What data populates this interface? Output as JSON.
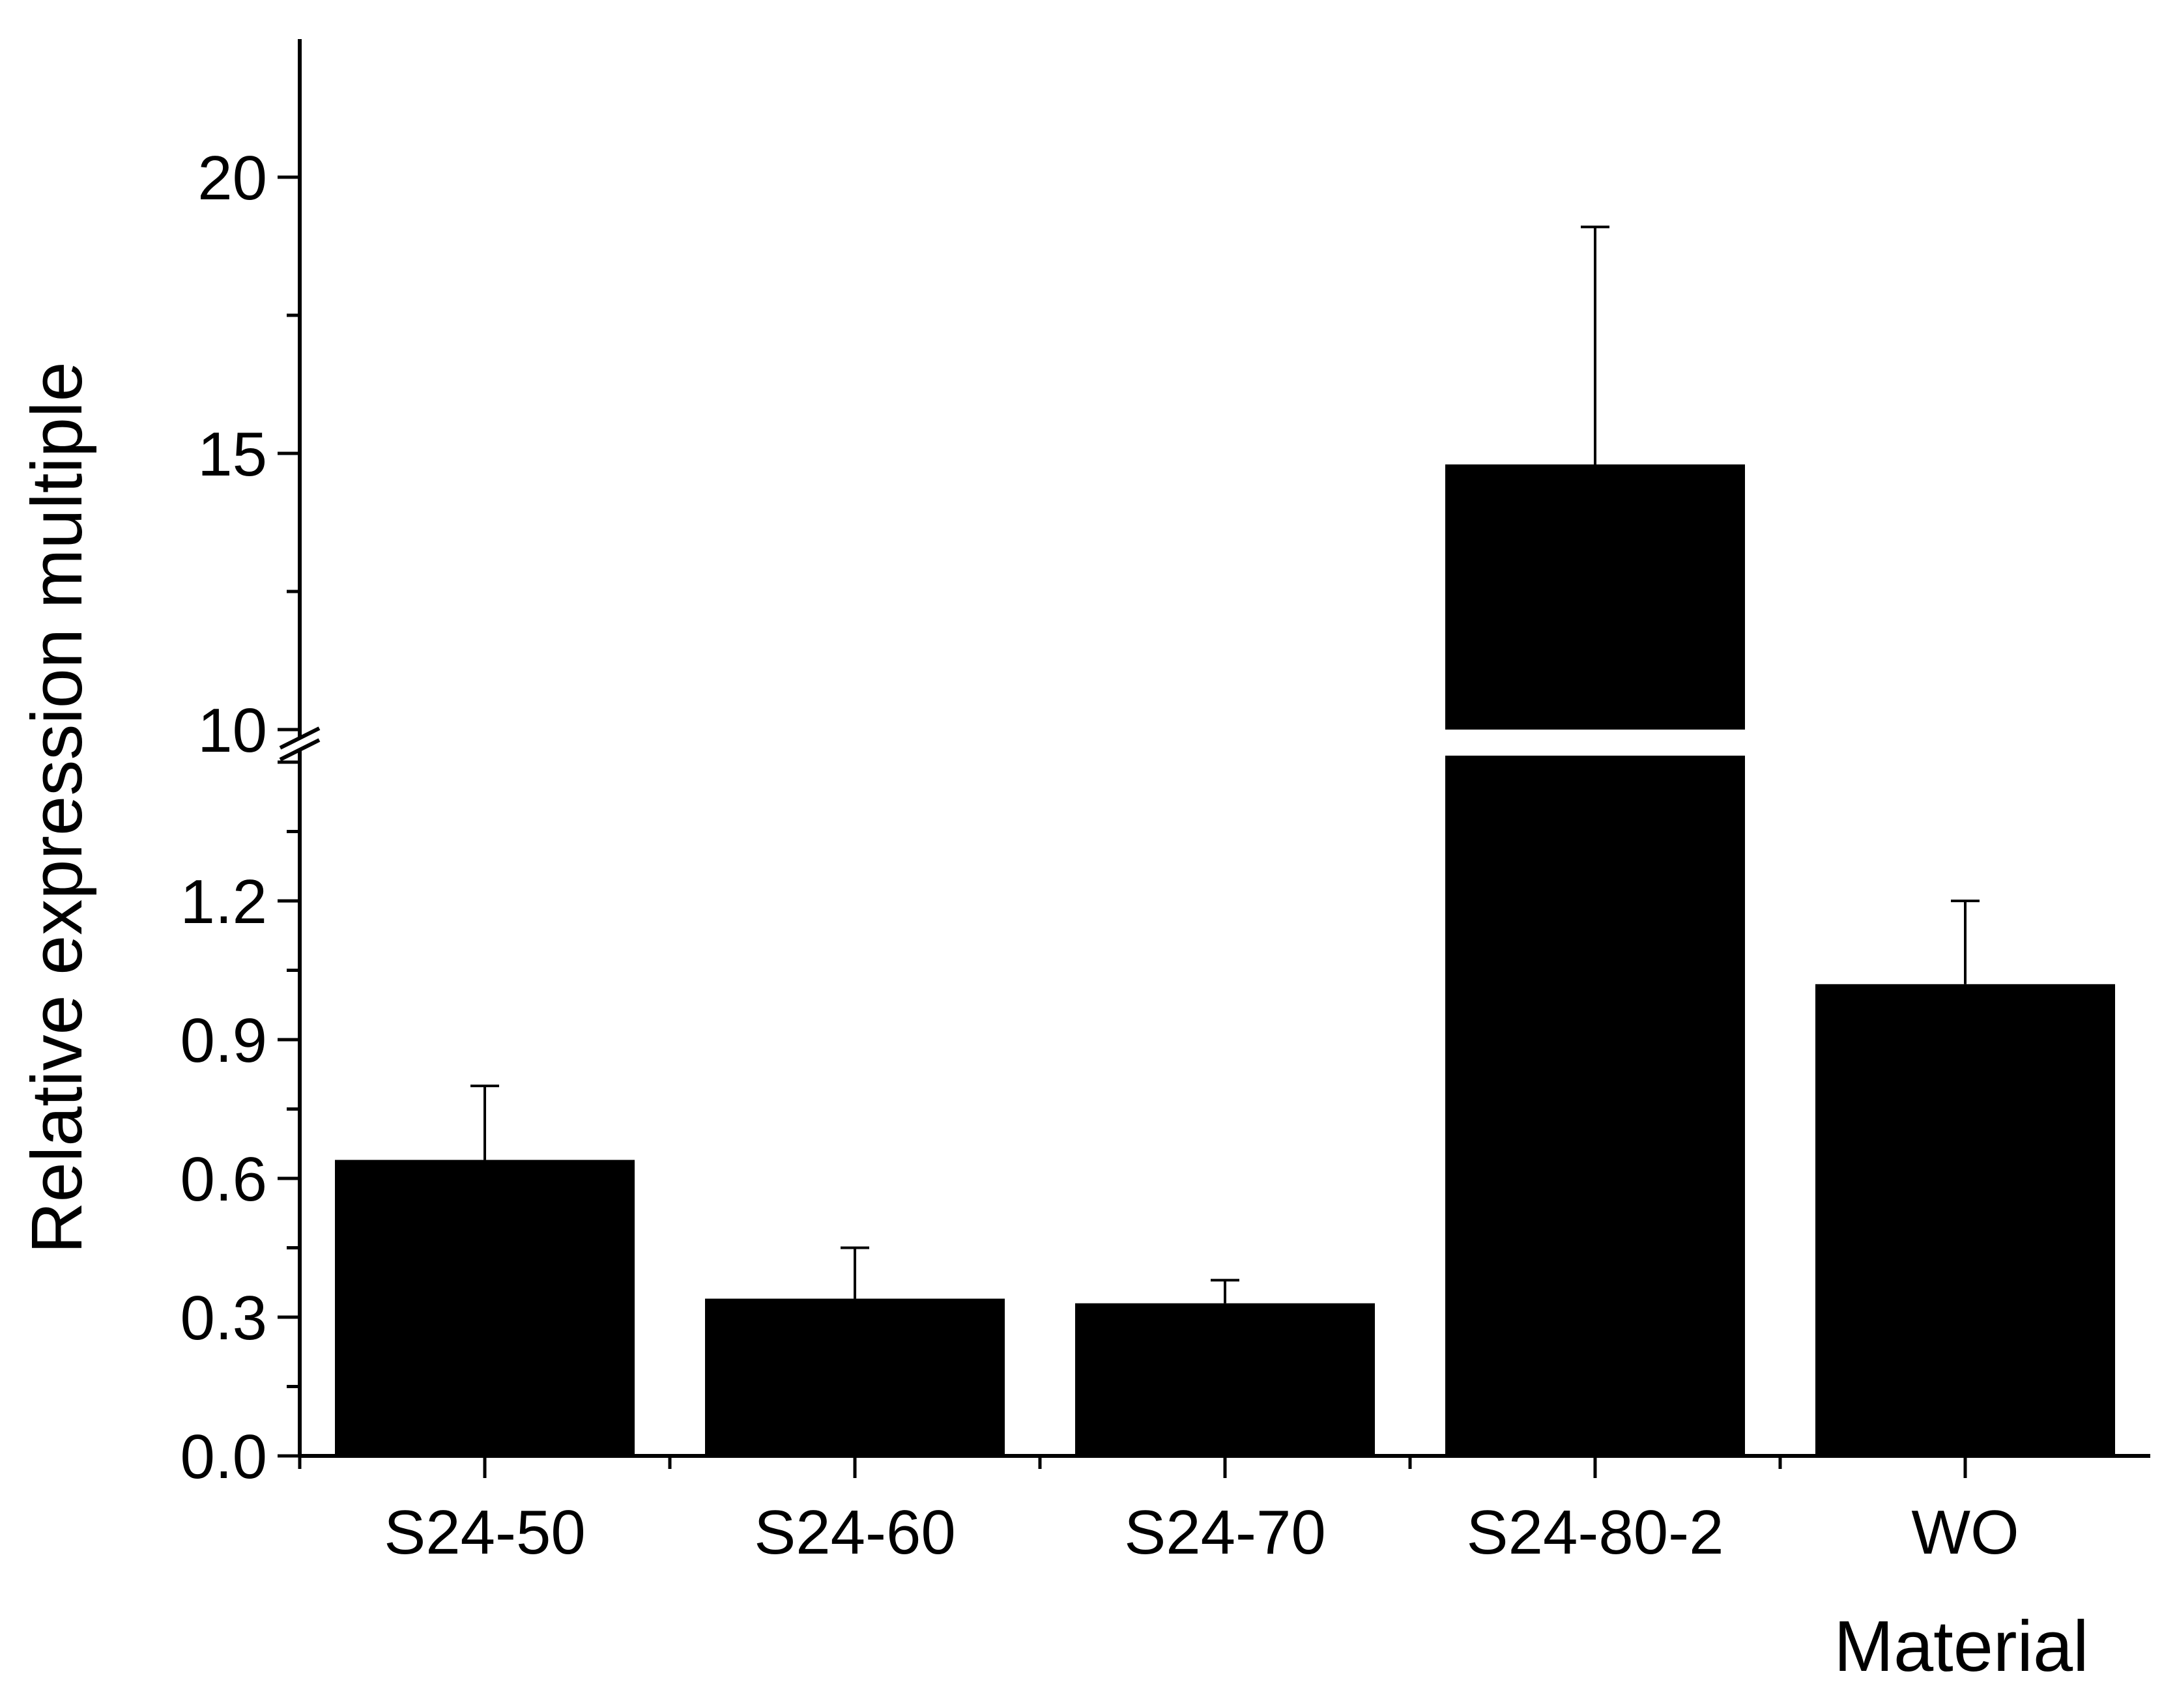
{
  "chart_data": {
    "type": "bar",
    "title": "",
    "xlabel": "Material",
    "ylabel": "Relative expression multiple",
    "categories": [
      "S24-50",
      "S24-60",
      "S24-70",
      "S24-80-2",
      "WO"
    ],
    "series": [
      {
        "values": [
          0.64,
          0.34,
          0.33,
          14.8,
          1.02
        ],
        "error_plus": [
          0.16,
          0.11,
          0.05,
          4.3,
          0.18
        ]
      }
    ],
    "y_axis_break": {
      "lower_segment": {
        "range": [
          0,
          1.5
        ],
        "tick_labels": [
          "0.0",
          "0.3",
          "0.6",
          "0.9",
          "1.2"
        ]
      },
      "upper_segment": {
        "range": [
          10,
          22.5
        ],
        "tick_labels": [
          "10",
          "15",
          "20"
        ]
      }
    },
    "grid": false,
    "legend": "none",
    "colors": {
      "bar": "#000000",
      "axis": "#000000",
      "background": "#ffffff"
    }
  }
}
